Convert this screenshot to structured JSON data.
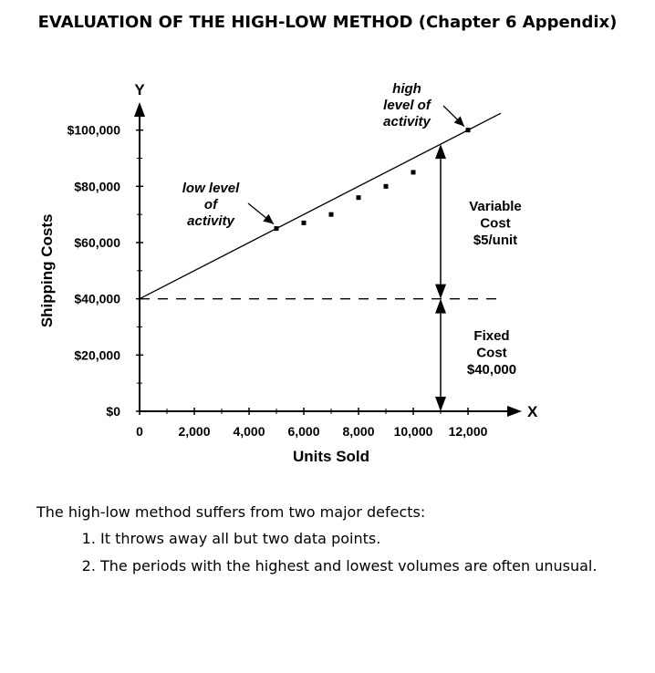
{
  "title": "EVALUATION OF THE HIGH-LOW METHOD (Chapter 6 Appendix)",
  "chart_data": {
    "type": "scatter",
    "xlabel": "Units Sold",
    "ylabel": "Shipping Costs",
    "x_axis_letter": "X",
    "y_axis_letter": "Y",
    "xlim": [
      0,
      13000
    ],
    "ylim": [
      0,
      100000
    ],
    "x_ticks": [
      0,
      2000,
      4000,
      6000,
      8000,
      10000,
      12000
    ],
    "x_tick_labels": [
      "0",
      "2,000",
      "4,000",
      "6,000",
      "8,000",
      "10,000",
      "12,000"
    ],
    "y_ticks": [
      0,
      20000,
      40000,
      60000,
      80000,
      100000
    ],
    "y_tick_labels": [
      "$0",
      "$20,000",
      "$40,000",
      "$60,000",
      "$80,000",
      "$100,000"
    ],
    "points": [
      {
        "x": 5000,
        "y": 65000
      },
      {
        "x": 6000,
        "y": 67000
      },
      {
        "x": 7000,
        "y": 70000
      },
      {
        "x": 8000,
        "y": 76000
      },
      {
        "x": 9000,
        "y": 80000
      },
      {
        "x": 10000,
        "y": 85000
      },
      {
        "x": 11000,
        "y": 91000
      },
      {
        "x": 12000,
        "y": 100000
      }
    ],
    "cost_line": {
      "intercept": 40000,
      "slope": 5,
      "x_end": 13200
    },
    "fixed_cost_level": 40000,
    "annotations": {
      "low": [
        "low level",
        "of",
        "activity"
      ],
      "high": [
        "high",
        "level of",
        "activity"
      ],
      "variable": [
        "Variable",
        "Cost",
        "$5/unit"
      ],
      "fixed": [
        "Fixed",
        "Cost",
        "$40,000"
      ]
    }
  },
  "notes": {
    "intro": "The high-low method suffers from two major defects:",
    "items": [
      "It throws away all but two data points.",
      "The periods with the highest and lowest volumes are often unusual."
    ]
  }
}
